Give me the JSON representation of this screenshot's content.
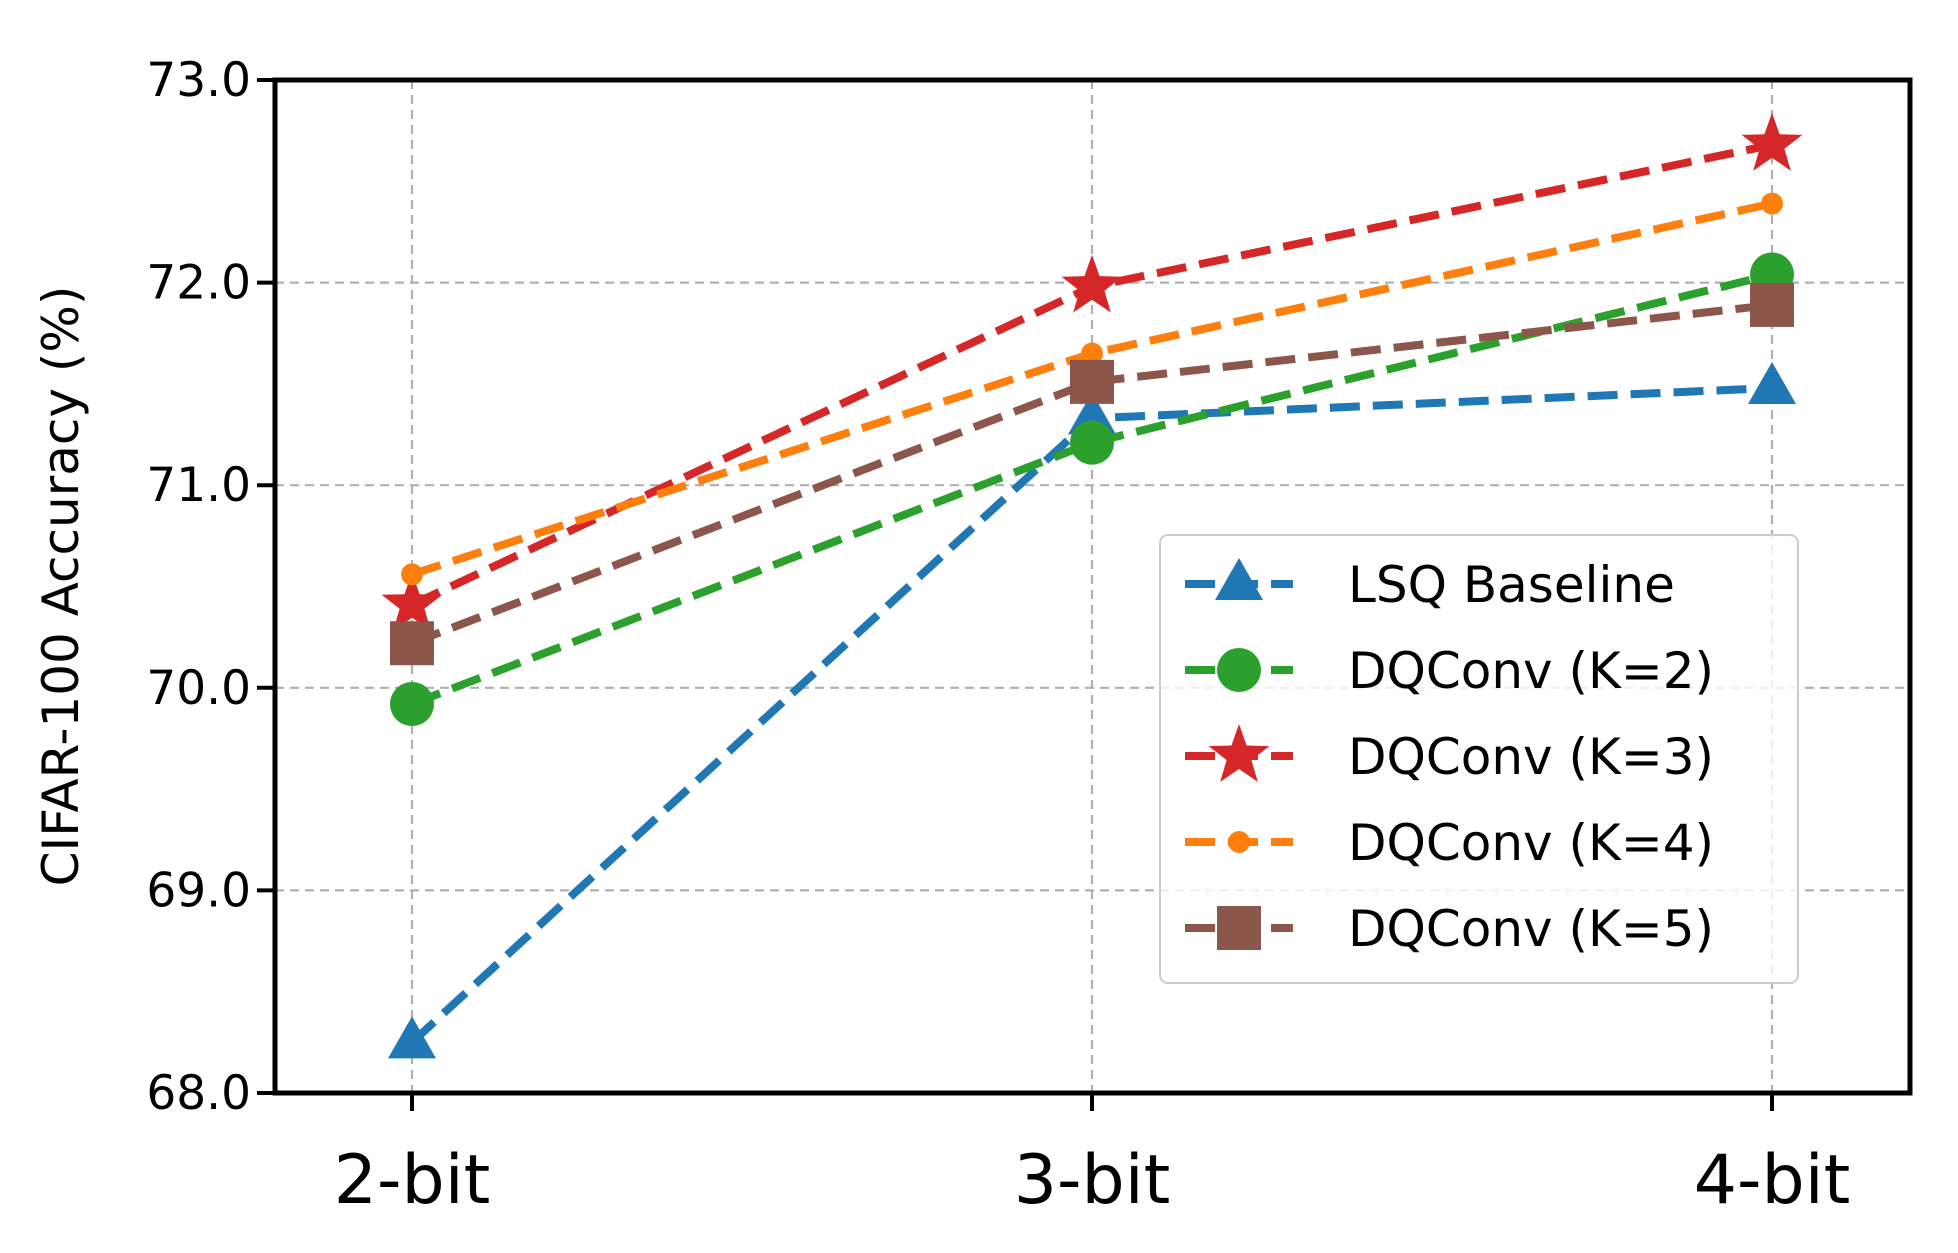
{
  "chart_data": {
    "type": "line",
    "title": "",
    "xlabel": "",
    "ylabel": "CIFAR-100 Accuracy (%)",
    "categories": [
      "2-bit",
      "3-bit",
      "4-bit"
    ],
    "ylim": [
      68.0,
      73.0
    ],
    "yticks": [
      "68.0",
      "69.0",
      "70.0",
      "71.0",
      "72.0",
      "73.0"
    ],
    "grid": true,
    "legend_position": "center-right",
    "series": [
      {
        "name": "LSQ Baseline",
        "values": [
          68.25,
          71.33,
          71.48
        ],
        "color": "#1f77b4",
        "marker": "triangle"
      },
      {
        "name": "DQConv (K=2)",
        "values": [
          69.92,
          71.21,
          72.04
        ],
        "color": "#2ca02c",
        "marker": "circle"
      },
      {
        "name": "DQConv (K=3)",
        "values": [
          70.41,
          71.98,
          72.68
        ],
        "color": "#d62728",
        "marker": "star"
      },
      {
        "name": "DQConv (K=4)",
        "values": [
          70.56,
          71.65,
          72.39
        ],
        "color": "#ff7f0e",
        "marker": "small-circle"
      },
      {
        "name": "DQConv (K=5)",
        "values": [
          70.22,
          71.51,
          71.89
        ],
        "color": "#8c564b",
        "marker": "square"
      }
    ]
  }
}
